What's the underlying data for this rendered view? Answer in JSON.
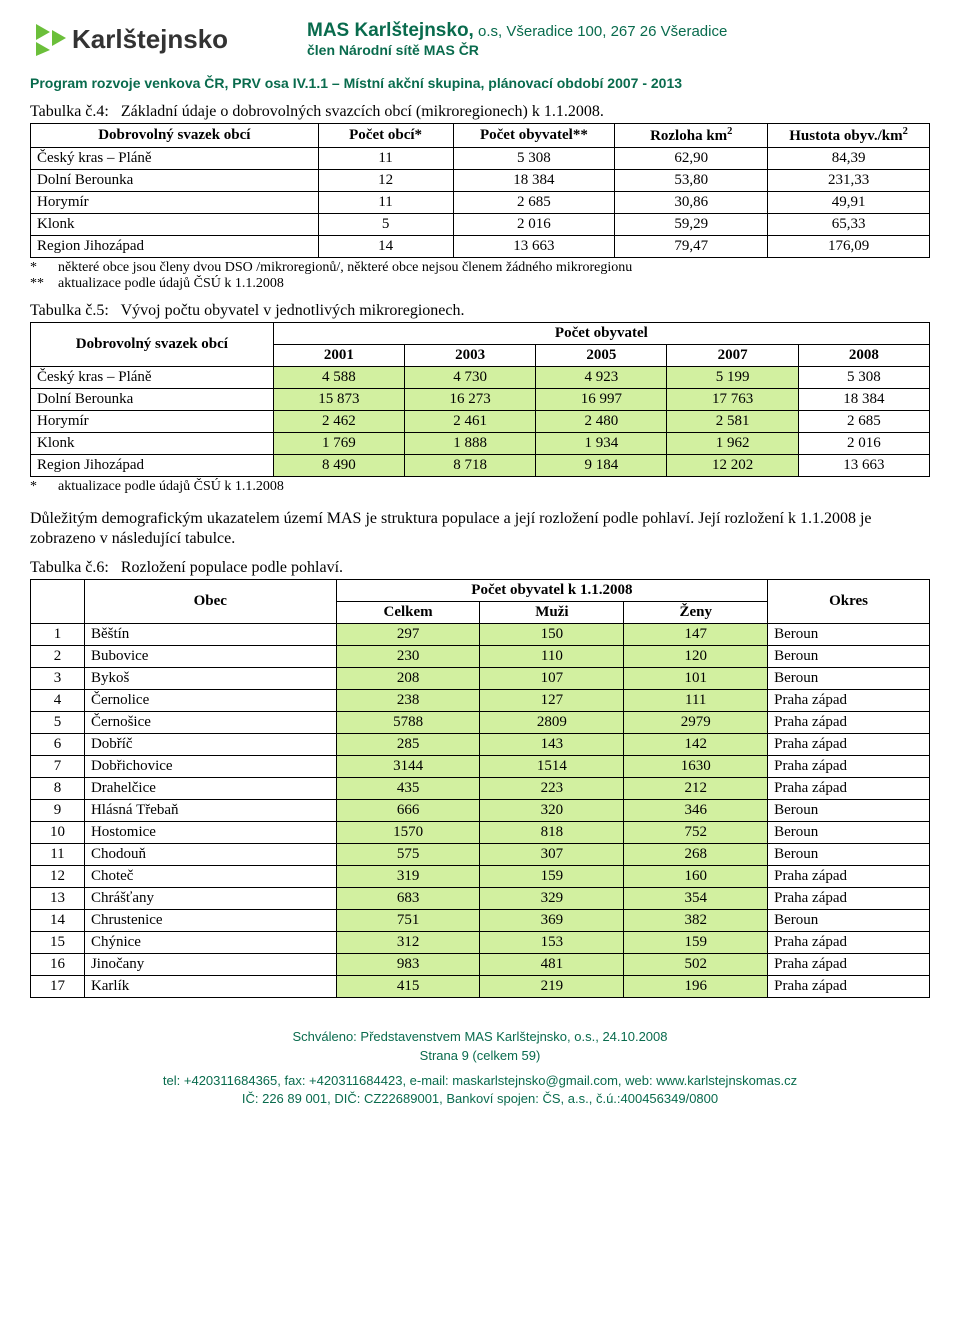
{
  "header": {
    "logo_text": "Karlštejnsko",
    "org_title_bold": "MAS Karlštejnsko,",
    "org_title_light": " o.s, Všeradice 100, 267 26 Všeradice",
    "org_sub": "člen  Národní sítě MAS ČR",
    "program_line": "Program rozvoje venkova ČR, PRV osa IV.1.1 – Místní akční skupina, plánovací období 2007 - 2013"
  },
  "table4": {
    "caption_prefix": "Tabulka č.4:",
    "caption_rest": "Základní údaje o dobrovolných svazcích obcí (mikroregionech) k 1.1.2008.",
    "headers": {
      "name": "Dobrovolný svazek obcí",
      "obci": "Počet obcí*",
      "obyv": "Počet obyvatel**",
      "area_pre": "Rozloha km",
      "area_sup": "2",
      "dens_pre": "Hustota obyv./km",
      "dens_sup": "2"
    },
    "rows": [
      {
        "name": "Český kras – Pláně",
        "c1": "11",
        "c2": "5 308",
        "c3": "62,90",
        "c4": "84,39"
      },
      {
        "name": "Dolní Berounka",
        "c1": "12",
        "c2": "18 384",
        "c3": "53,80",
        "c4": "231,33"
      },
      {
        "name": "Horymír",
        "c1": "11",
        "c2": "2 685",
        "c3": "30,86",
        "c4": "49,91"
      },
      {
        "name": "Klonk",
        "c1": "5",
        "c2": "2 016",
        "c3": "59,29",
        "c4": "65,33"
      },
      {
        "name": "Region Jihozápad",
        "c1": "14",
        "c2": "13 663",
        "c3": "79,47",
        "c4": "176,09"
      }
    ],
    "note1_star": "*",
    "note1": "některé obce jsou členy dvou DSO /mikroregionů/, některé obce nejsou členem žádného mikroregionu",
    "note2_star": "**",
    "note2": "aktualizace podle údajů ČSÚ k 1.1.2008"
  },
  "table5": {
    "caption_prefix": "Tabulka č.5:",
    "caption_rest": "Vývoj počtu obyvatel v jednotlivých mikroregionech.",
    "headers": {
      "name": "Dobrovolný svazek obcí",
      "group": "Počet obyvatel",
      "y2001": "2001",
      "y2003": "2003",
      "y2005": "2005",
      "y2007": "2007",
      "y2008": "2008"
    },
    "rows": [
      {
        "name": "Český kras – Pláně",
        "v": [
          "4 588",
          "4 730",
          "4 923",
          "5 199",
          "5 308"
        ]
      },
      {
        "name": "Dolní Berounka",
        "v": [
          "15 873",
          "16 273",
          "16 997",
          "17 763",
          "18 384"
        ]
      },
      {
        "name": "Horymír",
        "v": [
          "2 462",
          "2 461",
          "2 480",
          "2 581",
          "2 685"
        ]
      },
      {
        "name": "Klonk",
        "v": [
          "1 769",
          "1 888",
          "1 934",
          "1 962",
          "2 016"
        ]
      },
      {
        "name": "Region Jihozápad",
        "v": [
          "8 490",
          "8 718",
          "9 184",
          "12 202",
          "13 663"
        ]
      }
    ],
    "note_star": "*",
    "note": "aktualizace podle údajů ČSÚ k 1.1.2008"
  },
  "paragraph": "Důležitým demografickým ukazatelem území MAS je struktura populace a její rozložení podle pohlaví. Její rozložení k 1.1.2008 je zobrazeno v následující tabulce.",
  "table6": {
    "caption_prefix": "Tabulka č.6:",
    "caption_rest": "Rozložení populace podle pohlaví.",
    "headers": {
      "obec": "Obec",
      "group": "Počet obyvatel k 1.1.2008",
      "celkem": "Celkem",
      "muzi": "Muži",
      "zeny": "Ženy",
      "okres": "Okres"
    },
    "rows": [
      {
        "n": "1",
        "obec": "Běštín",
        "c": "297",
        "m": "150",
        "z": "147",
        "ok": "Beroun"
      },
      {
        "n": "2",
        "obec": "Bubovice",
        "c": "230",
        "m": "110",
        "z": "120",
        "ok": "Beroun"
      },
      {
        "n": "3",
        "obec": "Bykoš",
        "c": "208",
        "m": "107",
        "z": "101",
        "ok": "Beroun"
      },
      {
        "n": "4",
        "obec": "Černolice",
        "c": "238",
        "m": "127",
        "z": "111",
        "ok": "Praha západ"
      },
      {
        "n": "5",
        "obec": "Černošice",
        "c": "5788",
        "m": "2809",
        "z": "2979",
        "ok": "Praha západ"
      },
      {
        "n": "6",
        "obec": "Dobříč",
        "c": "285",
        "m": "143",
        "z": "142",
        "ok": "Praha západ"
      },
      {
        "n": "7",
        "obec": "Dobřichovice",
        "c": "3144",
        "m": "1514",
        "z": "1630",
        "ok": "Praha západ"
      },
      {
        "n": "8",
        "obec": "Drahelčice",
        "c": "435",
        "m": "223",
        "z": "212",
        "ok": "Praha západ"
      },
      {
        "n": "9",
        "obec": "Hlásná Třebaň",
        "c": "666",
        "m": "320",
        "z": "346",
        "ok": "Beroun"
      },
      {
        "n": "10",
        "obec": "Hostomice",
        "c": "1570",
        "m": "818",
        "z": "752",
        "ok": "Beroun"
      },
      {
        "n": "11",
        "obec": "Chodouň",
        "c": "575",
        "m": "307",
        "z": "268",
        "ok": "Beroun"
      },
      {
        "n": "12",
        "obec": "Choteč",
        "c": "319",
        "m": "159",
        "z": "160",
        "ok": "Praha západ"
      },
      {
        "n": "13",
        "obec": "Chrášťany",
        "c": "683",
        "m": "329",
        "z": "354",
        "ok": "Praha západ"
      },
      {
        "n": "14",
        "obec": "Chrustenice",
        "c": "751",
        "m": "369",
        "z": "382",
        "ok": "Beroun"
      },
      {
        "n": "15",
        "obec": "Chýnice",
        "c": "312",
        "m": "153",
        "z": "159",
        "ok": "Praha západ"
      },
      {
        "n": "16",
        "obec": "Jinočany",
        "c": "983",
        "m": "481",
        "z": "502",
        "ok": "Praha západ"
      },
      {
        "n": "17",
        "obec": "Karlík",
        "c": "415",
        "m": "219",
        "z": "196",
        "ok": "Praha západ"
      }
    ]
  },
  "footer": {
    "approved": "Schváleno: Představenstvem MAS Karlštejnsko, o.s., 24.10.2008",
    "page": "Strana 9 (celkem 59)",
    "line1": "tel: +420311684365,  fax: +420311684423,  e-mail: maskarlstejnsko@gmail.com,  web: www.karlstejnskomas.cz",
    "line2": "IČ: 226 89 001,  DIČ: CZ22689001,  Bankoví spojen: ČS, a.s., č.ú.:400456349/0800"
  }
}
